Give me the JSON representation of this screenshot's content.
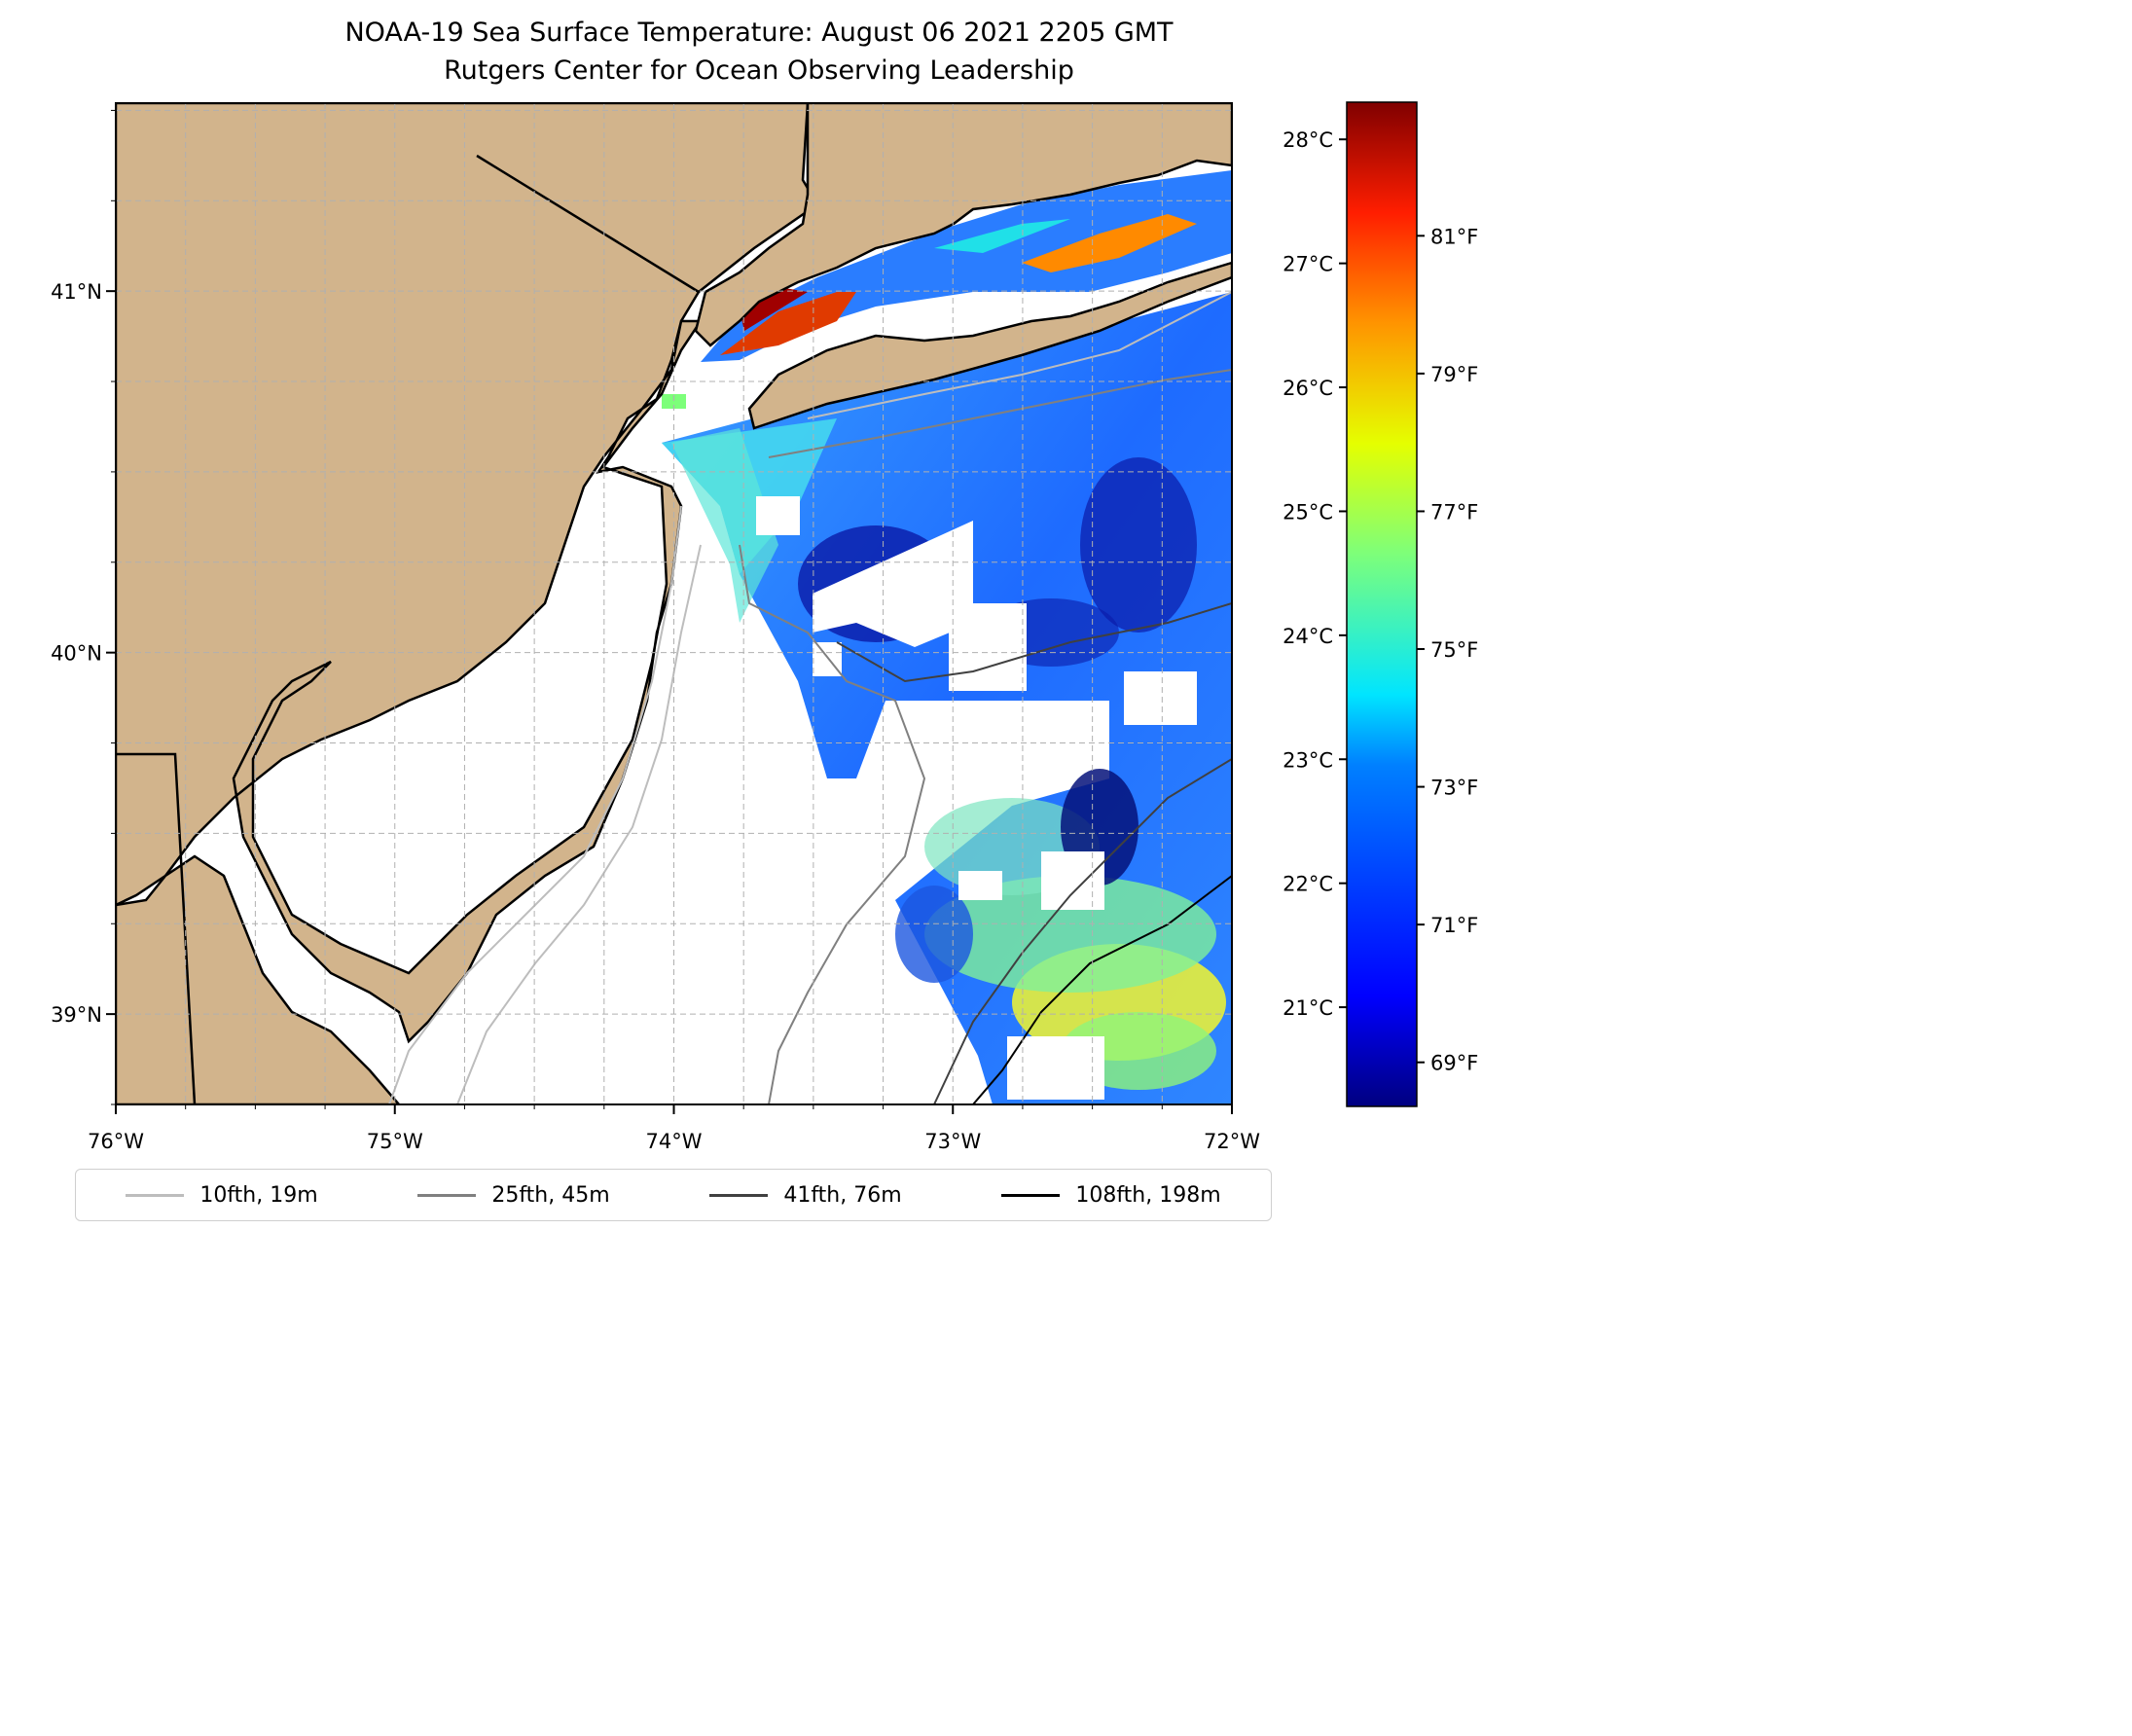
{
  "title": "NOAA-19 Sea Surface Temperature: August 06 2021 2205 GMT",
  "subtitle": "Rutgers Center for Ocean Observing Leadership",
  "colors": {
    "land": "#d2b48c",
    "coast": "#000000",
    "grid": "#b0b0b0",
    "colormap": [
      "#000080",
      "#0000ff",
      "#0080ff",
      "#00e5ff",
      "#7dff7a",
      "#e5ff00",
      "#ff9400",
      "#ff1e00",
      "#800000"
    ]
  },
  "axes": {
    "x_ticks": [
      "76°W",
      "75°W",
      "74°W",
      "73°W",
      "72°W"
    ],
    "y_ticks": [
      "41°N",
      "40°N",
      "39°N"
    ],
    "lon_range": [
      -76,
      -72
    ],
    "lat_range": [
      38.75,
      41.52
    ]
  },
  "colorbar": {
    "celsius_ticks": [
      "28°C",
      "27°C",
      "26°C",
      "25°C",
      "24°C",
      "23°C",
      "22°C",
      "21°C"
    ],
    "fahrenheit_ticks": [
      "81°F",
      "79°F",
      "77°F",
      "75°F",
      "73°F",
      "71°F",
      "69°F"
    ],
    "range_c": [
      20.2,
      28.3
    ]
  },
  "legend": [
    {
      "label": "10fth, 19m",
      "color": "#bdbdbd"
    },
    {
      "label": "25fth, 45m",
      "color": "#808080"
    },
    {
      "label": "41fth, 76m",
      "color": "#404040"
    },
    {
      "label": "108fth, 198m",
      "color": "#000000"
    }
  ]
}
